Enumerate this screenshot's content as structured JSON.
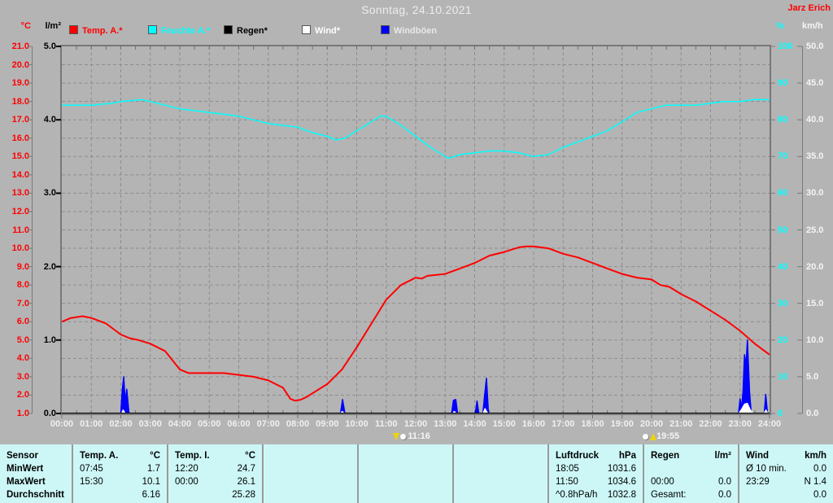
{
  "title": "Sonntag, 24.10.2021",
  "station": "Jarz Erich",
  "legend": {
    "items": [
      {
        "label": "Temp. A.*",
        "color": "#ff0000",
        "text_color": "#ff0000"
      },
      {
        "label": "Feuchte A.*",
        "color": "#00ffff",
        "text_color": "#00ffff"
      },
      {
        "label": "Regen*",
        "color": "#000000",
        "text_color": "#000000"
      },
      {
        "label": "Wind*",
        "color": "#ffffff",
        "text_color": "#ffffff"
      },
      {
        "label": "Windböen",
        "color": "#0000ff",
        "text_color": "#e8e8e8"
      }
    ]
  },
  "markers": [
    {
      "time": "11:16",
      "hour": 11.267,
      "kind": "set"
    },
    {
      "time": "19:55",
      "hour": 19.917,
      "kind": "rise"
    }
  ],
  "chart_data": {
    "type": "line",
    "title": "Sonntag, 24.10.2021",
    "x_axis": {
      "range_hours": [
        0,
        24
      ],
      "ticks": [
        "00:00",
        "01:00",
        "02:00",
        "03:00",
        "04:00",
        "05:00",
        "06:00",
        "07:00",
        "08:00",
        "09:00",
        "10:00",
        "11:00",
        "12:00",
        "13:00",
        "14:00",
        "15:00",
        "16:00",
        "17:00",
        "18:00",
        "19:00",
        "20:00",
        "21:00",
        "22:00",
        "23:00",
        "24:00"
      ]
    },
    "grid": {
      "v_divisions": 24,
      "h_divisions": 20,
      "color": "#8d8d8d",
      "dash": "4 3"
    },
    "axes": {
      "temp": {
        "label": "°C",
        "color": "#ff0000",
        "min": 1,
        "max": 21,
        "ticks": [
          "21.0",
          "20.0",
          "19.0",
          "18.0",
          "17.0",
          "16.0",
          "15.0",
          "14.0",
          "13.0",
          "12.0",
          "11.0",
          "10.0",
          "9.0",
          "8.0",
          "7.0",
          "6.0",
          "5.0",
          "4.0",
          "3.0",
          "2.0",
          "1.0"
        ]
      },
      "rain": {
        "label": "l/m²",
        "color": "#000000",
        "min": 0,
        "max": 5,
        "ticks": [
          "5.0",
          "4.0",
          "3.0",
          "2.0",
          "1.0",
          "0.0"
        ]
      },
      "humidity": {
        "label": "%",
        "color": "#00ffff",
        "min": 0,
        "max": 100,
        "ticks": [
          "100",
          "90",
          "80",
          "70",
          "60",
          "50",
          "40",
          "30",
          "20",
          "10",
          "0"
        ]
      },
      "wind": {
        "label": "km/h",
        "color": "#f5f5f5",
        "min": 0,
        "max": 50,
        "ticks": [
          "50.0",
          "45.0",
          "40.0",
          "35.0",
          "30.0",
          "25.0",
          "20.0",
          "15.0",
          "10.0",
          "5.0",
          "0.0"
        ]
      }
    },
    "series": [
      {
        "name": "Feuchte A.*",
        "data_name": "humidity-curve",
        "axis": "humidity",
        "color": "#00ffff",
        "width": 1.5,
        "fill": false,
        "points": [
          [
            0,
            84
          ],
          [
            0.5,
            84
          ],
          [
            1,
            84
          ],
          [
            1.7,
            84.5
          ],
          [
            2,
            85
          ],
          [
            2.7,
            85.5
          ],
          [
            3,
            85
          ],
          [
            3.5,
            84
          ],
          [
            4,
            83
          ],
          [
            4.5,
            82.5
          ],
          [
            5,
            82
          ],
          [
            5.5,
            81.5
          ],
          [
            6,
            81
          ],
          [
            6.5,
            80
          ],
          [
            7,
            79
          ],
          [
            7.5,
            78.5
          ],
          [
            8,
            78
          ],
          [
            8.5,
            76.5
          ],
          [
            9,
            75.5
          ],
          [
            9.3,
            74.5
          ],
          [
            9.6,
            75
          ],
          [
            10,
            77
          ],
          [
            10.4,
            79
          ],
          [
            10.8,
            81
          ],
          [
            11,
            81
          ],
          [
            11.3,
            79.5
          ],
          [
            11.5,
            78.5
          ],
          [
            12,
            75.5
          ],
          [
            12.5,
            72.5
          ],
          [
            13,
            70
          ],
          [
            13.1,
            69.5
          ],
          [
            13.5,
            70.5
          ],
          [
            14,
            71
          ],
          [
            14.5,
            71.5
          ],
          [
            15,
            71.5
          ],
          [
            15.5,
            71
          ],
          [
            16,
            70
          ],
          [
            16.5,
            70.5
          ],
          [
            17,
            72.5
          ],
          [
            17.5,
            74
          ],
          [
            18,
            75.5
          ],
          [
            18.5,
            77
          ],
          [
            19,
            79.5
          ],
          [
            19.5,
            82
          ],
          [
            20,
            83
          ],
          [
            20.5,
            84
          ],
          [
            21,
            84
          ],
          [
            21.5,
            84
          ],
          [
            22,
            84.5
          ],
          [
            22.5,
            85
          ],
          [
            23,
            85
          ],
          [
            23.5,
            85.5
          ],
          [
            24,
            85.5
          ]
        ]
      },
      {
        "name": "Temp. A.*",
        "data_name": "temperature-curve",
        "axis": "temp",
        "color": "#ff0000",
        "width": 2,
        "fill": false,
        "points": [
          [
            0,
            6.0
          ],
          [
            0.3,
            6.2
          ],
          [
            0.7,
            6.3
          ],
          [
            1,
            6.2
          ],
          [
            1.5,
            5.9
          ],
          [
            2,
            5.3
          ],
          [
            2.3,
            5.1
          ],
          [
            2.6,
            5.0
          ],
          [
            3,
            4.8
          ],
          [
            3.5,
            4.4
          ],
          [
            4,
            3.4
          ],
          [
            4.3,
            3.2
          ],
          [
            5,
            3.2
          ],
          [
            5.5,
            3.2
          ],
          [
            6,
            3.1
          ],
          [
            6.5,
            3.0
          ],
          [
            7,
            2.8
          ],
          [
            7.5,
            2.4
          ],
          [
            7.75,
            1.8
          ],
          [
            7.9,
            1.7
          ],
          [
            8.1,
            1.75
          ],
          [
            8.3,
            1.9
          ],
          [
            8.5,
            2.1
          ],
          [
            9,
            2.6
          ],
          [
            9.5,
            3.4
          ],
          [
            10,
            4.6
          ],
          [
            10.5,
            5.9
          ],
          [
            11,
            7.2
          ],
          [
            11.5,
            8.0
          ],
          [
            12,
            8.4
          ],
          [
            12.2,
            8.35
          ],
          [
            12.4,
            8.5
          ],
          [
            13,
            8.6
          ],
          [
            13.5,
            8.9
          ],
          [
            14,
            9.2
          ],
          [
            14.5,
            9.6
          ],
          [
            15,
            9.8
          ],
          [
            15.5,
            10.05
          ],
          [
            15.75,
            10.1
          ],
          [
            16,
            10.1
          ],
          [
            16.5,
            10.0
          ],
          [
            17,
            9.7
          ],
          [
            17.5,
            9.5
          ],
          [
            18,
            9.2
          ],
          [
            18.5,
            8.9
          ],
          [
            19,
            8.6
          ],
          [
            19.5,
            8.4
          ],
          [
            20,
            8.3
          ],
          [
            20.3,
            8.0
          ],
          [
            20.6,
            7.9
          ],
          [
            21,
            7.5
          ],
          [
            21.5,
            7.1
          ],
          [
            22,
            6.6
          ],
          [
            22.5,
            6.1
          ],
          [
            23,
            5.5
          ],
          [
            23.5,
            4.8
          ],
          [
            24,
            4.2
          ]
        ]
      },
      {
        "name": "Windböen",
        "data_name": "gusts-curve",
        "axis": "wind",
        "color": "#0000ff",
        "width": 1.5,
        "fill": true,
        "points": [
          [
            0,
            0
          ],
          [
            2.0,
            0
          ],
          [
            2.05,
            3.2
          ],
          [
            2.1,
            5.0
          ],
          [
            2.15,
            1.5
          ],
          [
            2.2,
            3.3
          ],
          [
            2.28,
            0
          ],
          [
            9.45,
            0
          ],
          [
            9.52,
            1.9
          ],
          [
            9.6,
            0
          ],
          [
            13.22,
            0
          ],
          [
            13.28,
            1.8
          ],
          [
            13.36,
            1.9
          ],
          [
            13.42,
            0
          ],
          [
            14.02,
            0
          ],
          [
            14.08,
            1.7
          ],
          [
            14.14,
            0
          ],
          [
            14.28,
            0
          ],
          [
            14.33,
            2.2
          ],
          [
            14.4,
            4.8
          ],
          [
            14.47,
            0
          ],
          [
            22.95,
            0
          ],
          [
            23.0,
            2.0
          ],
          [
            23.05,
            0.6
          ],
          [
            23.1,
            3.0
          ],
          [
            23.15,
            8.0
          ],
          [
            23.2,
            6.5
          ],
          [
            23.25,
            10.0
          ],
          [
            23.32,
            3.0
          ],
          [
            23.38,
            0
          ],
          [
            23.82,
            0
          ],
          [
            23.87,
            2.6
          ],
          [
            23.93,
            0
          ],
          [
            24,
            0
          ]
        ]
      },
      {
        "name": "Wind*",
        "data_name": "wind-curve",
        "axis": "wind",
        "color": "#ffffff",
        "width": 1,
        "fill": true,
        "points": [
          [
            0,
            0
          ],
          [
            2.02,
            0
          ],
          [
            2.08,
            0.5
          ],
          [
            2.16,
            0
          ],
          [
            9.45,
            0
          ],
          [
            9.5,
            0.3
          ],
          [
            9.6,
            0
          ],
          [
            13.25,
            0
          ],
          [
            13.3,
            0.3
          ],
          [
            13.4,
            0
          ],
          [
            14.28,
            0
          ],
          [
            14.35,
            0.7
          ],
          [
            14.45,
            0
          ],
          [
            22.95,
            0
          ],
          [
            23.05,
            0.6
          ],
          [
            23.15,
            1.3
          ],
          [
            23.25,
            1.4
          ],
          [
            23.35,
            0.5
          ],
          [
            23.45,
            0
          ],
          [
            23.8,
            0
          ],
          [
            23.88,
            0.5
          ],
          [
            23.95,
            0
          ],
          [
            24,
            0
          ]
        ]
      },
      {
        "name": "Regen*",
        "data_name": "rain-curve",
        "axis": "rain",
        "color": "#000000",
        "width": 2,
        "fill": false,
        "points": [
          [
            0,
            0
          ],
          [
            24,
            0
          ]
        ]
      }
    ]
  },
  "table": {
    "row_labels": [
      "Sensor",
      "MinWert",
      "MaxWert",
      "Durchschnitt"
    ],
    "columns": [
      {
        "header": "Temp. A.",
        "unit": "°C",
        "rows": [
          [
            "07:45",
            "1.7"
          ],
          [
            "15:30",
            "10.1"
          ],
          [
            "",
            "6.16"
          ]
        ]
      },
      {
        "header": "Temp. I.",
        "unit": "°C",
        "rows": [
          [
            "12:20",
            "24.7"
          ],
          [
            "00:00",
            "26.1"
          ],
          [
            "",
            "25.28"
          ]
        ]
      },
      {
        "header": "",
        "unit": "",
        "rows": [
          [
            "",
            ""
          ],
          [
            "",
            ""
          ],
          [
            "",
            ""
          ]
        ]
      },
      {
        "header": "",
        "unit": "",
        "rows": [
          [
            "",
            ""
          ],
          [
            "",
            ""
          ],
          [
            "",
            ""
          ]
        ]
      },
      {
        "header": "",
        "unit": "",
        "rows": [
          [
            "",
            ""
          ],
          [
            "",
            ""
          ],
          [
            "",
            ""
          ]
        ]
      },
      {
        "header": "Luftdruck",
        "unit": "hPa",
        "rows": [
          [
            "18:05",
            "1031.6"
          ],
          [
            "11:50",
            "1034.6"
          ],
          [
            "^0.8hPa/h",
            "1032.8"
          ]
        ]
      },
      {
        "header": "Regen",
        "unit": "l/m²",
        "rows": [
          [
            "",
            ""
          ],
          [
            "00:00",
            "0.0"
          ],
          [
            "Gesamt:",
            "0.0"
          ]
        ]
      },
      {
        "header": "Wind",
        "unit": "km/h",
        "rows": [
          [
            "Ø 10 min.",
            "0.0"
          ],
          [
            "23:29",
            "N 1.4"
          ],
          [
            "",
            "0.0"
          ]
        ]
      }
    ]
  },
  "colors": {
    "background": "#b4b4b4",
    "plot_border": "#787878",
    "grid": "#8d8d8d",
    "table_background": "#cdf7f7",
    "accent_red": "#ff0000",
    "accent_cyan": "#00ffff",
    "accent_blue": "#0000ff"
  }
}
